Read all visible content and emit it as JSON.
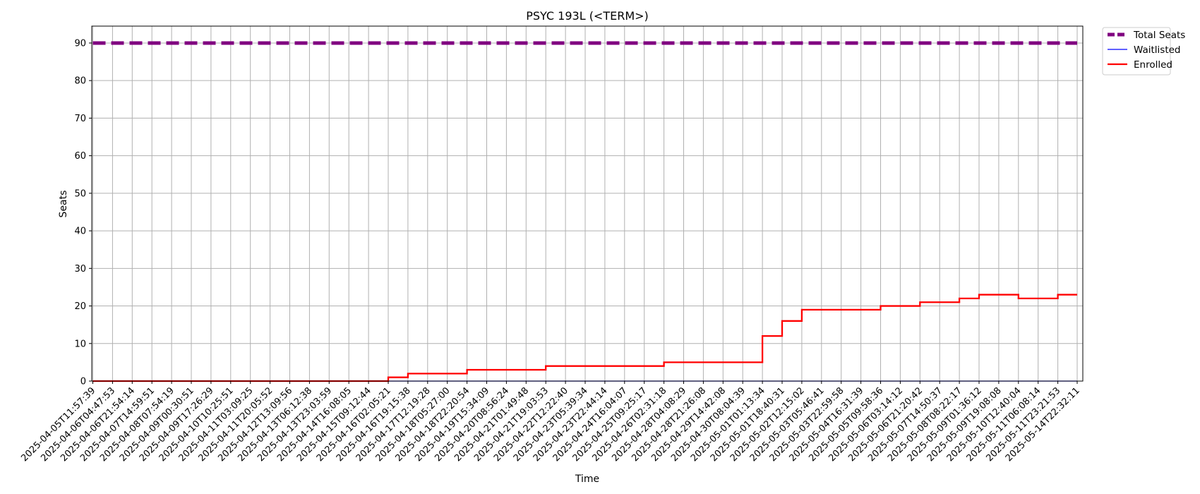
{
  "chart_data": {
    "type": "line",
    "title": "PSYC 193L (<TERM>)",
    "xlabel": "Time",
    "ylabel": "Seats",
    "ylim": [
      0,
      94.5
    ],
    "yticks": [
      0,
      10,
      20,
      30,
      40,
      50,
      60,
      70,
      80,
      90
    ],
    "grid": true,
    "legend_position": "outside top-right",
    "x_tick_labels": [
      "2025-04-05T11:57:39",
      "2025-04-06T04:47:53",
      "2025-04-06T21:54:14",
      "2025-04-07T14:59:51",
      "2025-04-08T07:54:19",
      "2025-04-09T00:30:51",
      "2025-04-09T17:26:29",
      "2025-04-10T10:25:51",
      "2025-04-11T03:09:25",
      "2025-04-11T20:05:52",
      "2025-04-12T13:09:56",
      "2025-04-13T06:12:38",
      "2025-04-13T23:03:59",
      "2025-04-14T16:08:05",
      "2025-04-15T09:12:44",
      "2025-04-16T02:05:21",
      "2025-04-16T19:15:38",
      "2025-04-17T12:19:28",
      "2025-04-18T05:27:00",
      "2025-04-18T22:20:54",
      "2025-04-19T15:34:09",
      "2025-04-20T08:56:24",
      "2025-04-21T01:49:48",
      "2025-04-21T19:03:53",
      "2025-04-22T12:22:40",
      "2025-04-23T05:39:34",
      "2025-04-23T22:44:14",
      "2025-04-24T16:04:07",
      "2025-04-25T09:25:17",
      "2025-04-26T02:31:18",
      "2025-04-28T04:08:29",
      "2025-04-28T21:26:08",
      "2025-04-29T14:42:08",
      "2025-04-30T08:04:39",
      "2025-05-01T01:13:34",
      "2025-05-01T18:40:31",
      "2025-05-02T12:15:02",
      "2025-05-03T05:46:41",
      "2025-05-03T22:59:58",
      "2025-05-04T16:31:39",
      "2025-05-05T09:58:36",
      "2025-05-06T03:14:12",
      "2025-05-06T21:20:42",
      "2025-05-07T14:50:37",
      "2025-05-08T08:22:17",
      "2025-05-09T01:36:12",
      "2025-05-09T19:08:08",
      "2025-05-10T12:40:04",
      "2025-05-11T06:08:14",
      "2025-05-11T23:21:53",
      "2025-05-14T22:32:11"
    ],
    "series": [
      {
        "name": "Total Seats",
        "color": "#800080",
        "style": "dashed",
        "points": [
          [
            "2025-04-05T11:57:39",
            90
          ],
          [
            "2025-05-14T22:32:11",
            90
          ]
        ]
      },
      {
        "name": "Waitlisted",
        "color": "#0000ff",
        "style": "solid",
        "points": [
          [
            "2025-04-05T11:57:39",
            0
          ],
          [
            "2025-05-14T22:32:11",
            0
          ]
        ]
      },
      {
        "name": "Enrolled",
        "color": "#ff0000",
        "style": "step",
        "points": [
          [
            "2025-04-05T11:57:39",
            0
          ],
          [
            "2025-04-16T02:05:21",
            1
          ],
          [
            "2025-04-16T19:15:38",
            2
          ],
          [
            "2025-04-18T22:20:54",
            3
          ],
          [
            "2025-04-21T19:03:53",
            4
          ],
          [
            "2025-04-26T02:31:18",
            5
          ],
          [
            "2025-05-01T01:13:34",
            7
          ],
          [
            "2025-05-01T01:13:34",
            8
          ],
          [
            "2025-05-01T01:13:34",
            9
          ],
          [
            "2025-05-01T01:13:34",
            10
          ],
          [
            "2025-05-01T01:13:34",
            11
          ],
          [
            "2025-05-01T01:13:34",
            12
          ],
          [
            "2025-05-01T18:40:31",
            14
          ],
          [
            "2025-05-01T18:40:31",
            15
          ],
          [
            "2025-05-01T18:40:31",
            16
          ],
          [
            "2025-05-02T12:15:02",
            17
          ],
          [
            "2025-05-02T12:15:02",
            18
          ],
          [
            "2025-05-02T12:15:02",
            19
          ],
          [
            "2025-05-05T09:58:36",
            20
          ],
          [
            "2025-05-06T21:20:42",
            21
          ],
          [
            "2025-05-08T08:22:17",
            22
          ],
          [
            "2025-05-09T01:36:12",
            23
          ],
          [
            "2025-05-10T12:40:04",
            22
          ],
          [
            "2025-05-11T23:21:53",
            23
          ],
          [
            "2025-05-14T22:32:11",
            23
          ]
        ]
      }
    ]
  }
}
